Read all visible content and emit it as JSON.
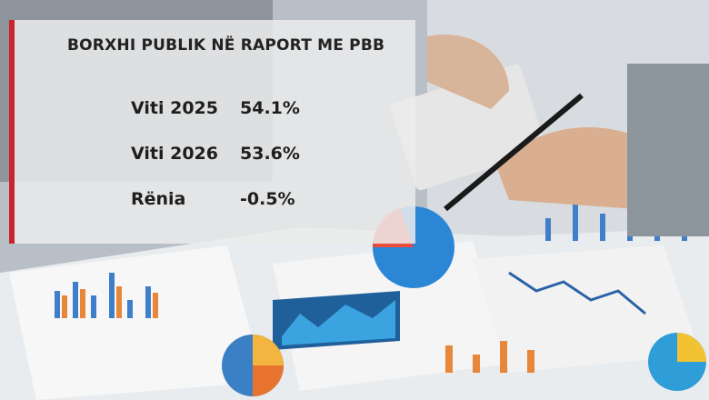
{
  "panel": {
    "title": "BORXHI PUBLIK NË RAPORT ME PBB",
    "rows": [
      {
        "label": "Viti 2025",
        "value": "54.1%"
      },
      {
        "label": "Viti 2026",
        "value": "53.6%"
      },
      {
        "label": "Rënia",
        "value": "-0.5%"
      }
    ]
  }
}
